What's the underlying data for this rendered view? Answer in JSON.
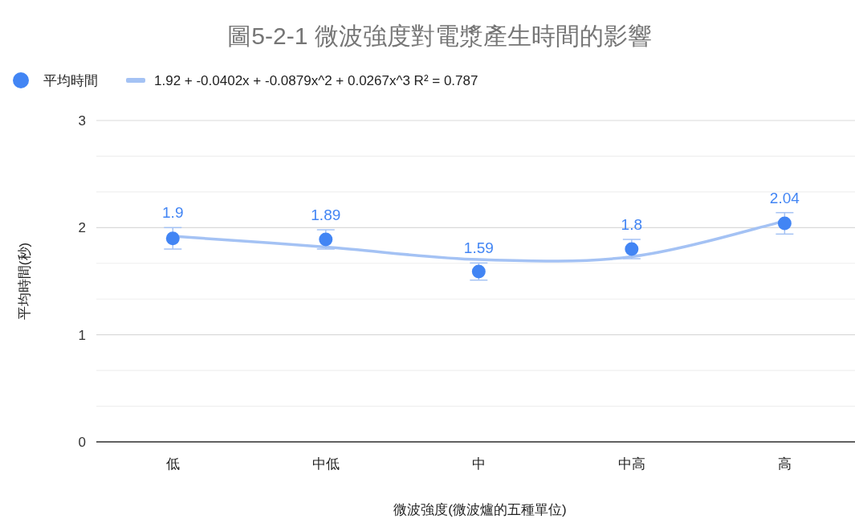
{
  "chart_data": {
    "type": "scatter",
    "title": "圖5-2-1  微波強度對電漿產生時間的影響",
    "xlabel": "微波強度(微波爐的五種單位)",
    "ylabel": "平均時間(秒)",
    "categories": [
      "低",
      "中低",
      "中",
      "中高",
      "高"
    ],
    "series": [
      {
        "name": "平均時間",
        "type": "scatter",
        "color": "#4285f4",
        "values": [
          1.9,
          1.89,
          1.59,
          1.8,
          2.04
        ],
        "errors": [
          0.1,
          0.09,
          0.08,
          0.09,
          0.1
        ],
        "data_labels": true,
        "marker": "circle"
      },
      {
        "name": "1.92 + -0.0402x + -0.0879x^2 + 0.0267x^3 R² = 0.787",
        "type": "line",
        "color": "#a4c2f4",
        "values": [
          1.92,
          1.819,
          1.702,
          1.729,
          2.062
        ],
        "marker": "none",
        "line_style": "solid"
      }
    ],
    "ylim": [
      0,
      3
    ],
    "yticks": [
      0,
      {
        "value": 0.333,
        "label": null
      },
      {
        "value": 0.667,
        "label": null
      },
      1,
      {
        "value": 1.333,
        "label": null
      },
      {
        "value": 1.667,
        "label": null
      },
      2,
      {
        "value": 2.333,
        "label": null
      },
      {
        "value": 2.667,
        "label": null
      },
      3
    ],
    "grid": "y",
    "legend": "top left"
  }
}
